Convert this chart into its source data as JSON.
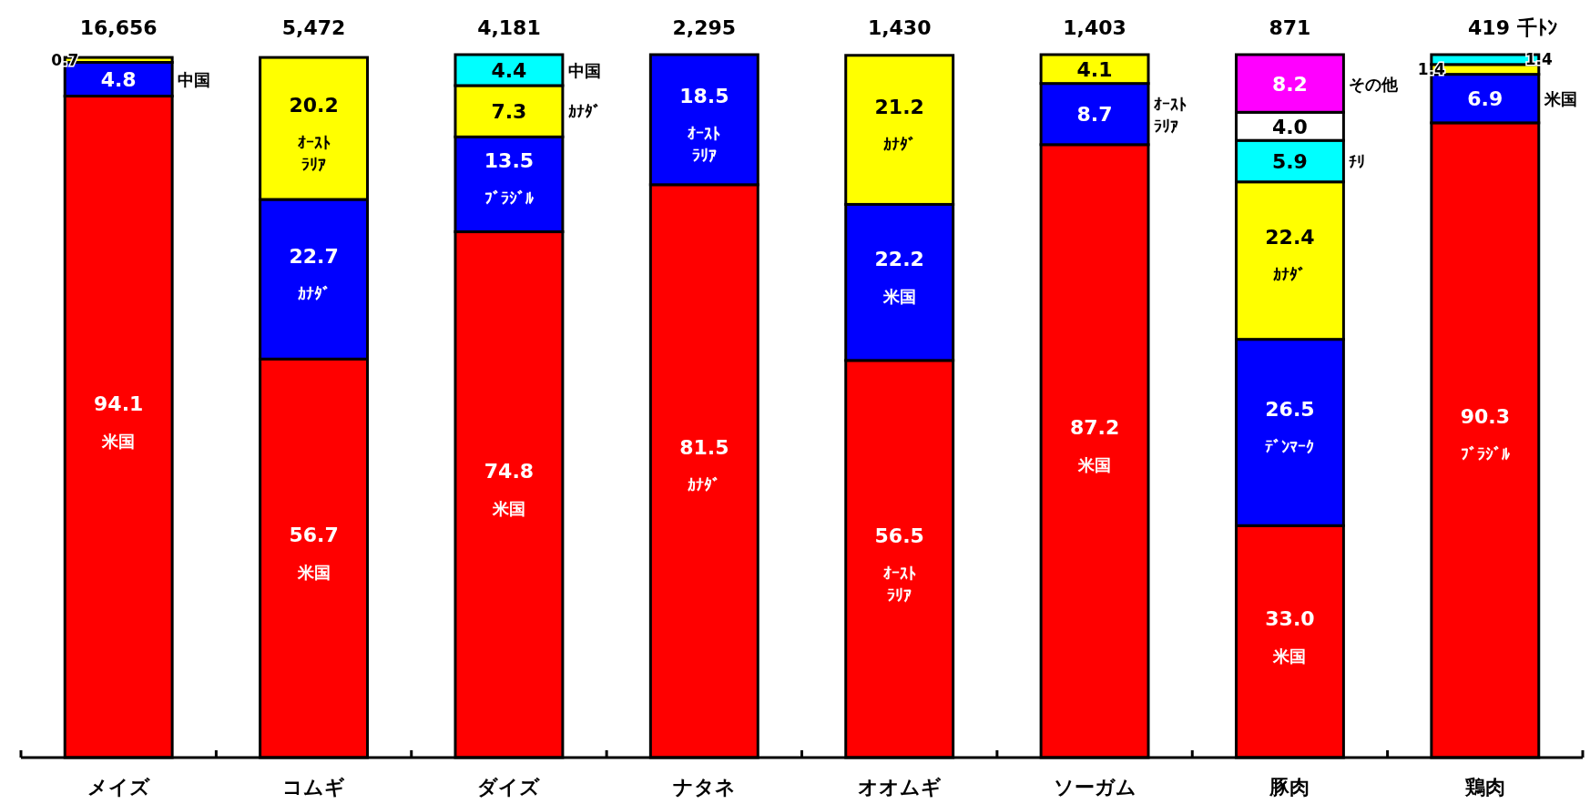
{
  "chart_data": {
    "type": "bar",
    "stacked": true,
    "tick_labels": "x",
    "categories": [
      "メイズ",
      "コムギ",
      "ダイズ",
      "ナタネ",
      "オオムギ",
      "ソーガム",
      "豚肉",
      "鶏肉"
    ],
    "series": [
      {
        "color": "#ff0000",
        "values": [
          94.1,
          56.7,
          74.8,
          81.5,
          56.5,
          87.2,
          33.0,
          90.3
        ],
        "value_labels": [
          "94.1",
          "56.7",
          "74.8",
          "81.5",
          "56.5",
          "87.2",
          "33.0",
          "90.3"
        ]
      },
      {
        "color": "#0000ff",
        "values": [
          4.8,
          22.7,
          13.5,
          18.5,
          22.2,
          8.7,
          26.5,
          6.9
        ],
        "value_labels": [
          "4.8",
          "22.7",
          "13.5",
          "18.5",
          "22.2",
          "8.7",
          "26.5",
          "6.9"
        ]
      },
      {
        "color": "#ffff00",
        "values": [
          0.7,
          20.2,
          7.3,
          null,
          21.2,
          4.1,
          22.4,
          1.4
        ],
        "value_labels": [
          "0.7",
          "20.2",
          "7.3",
          null,
          "21.2",
          "4.1",
          "22.4",
          "1.4"
        ]
      },
      {
        "color": "#00ffff",
        "values": [
          null,
          null,
          4.4,
          null,
          null,
          null,
          5.9,
          1.4
        ],
        "value_labels": [
          null,
          null,
          "4.4",
          null,
          null,
          null,
          "5.9",
          "1.4"
        ]
      },
      {
        "color": "#ffffff",
        "values": [
          null,
          null,
          null,
          null,
          null,
          null,
          4.0,
          null
        ],
        "value_labels": [
          null,
          null,
          null,
          null,
          null,
          null,
          "4.0",
          null
        ]
      },
      {
        "color": "#ff00ff",
        "values": [
          null,
          null,
          null,
          null,
          null,
          null,
          8.2,
          null
        ],
        "value_labels": [
          null,
          null,
          null,
          null,
          null,
          null,
          "8.2",
          null
        ]
      }
    ],
    "annotations": [
      "16,656",
      "5,472",
      "4,181",
      "2,295",
      "1,430",
      "1,403",
      "871",
      "419 千ﾄﾝ",
      "米国",
      "中国",
      "米国",
      "ｶﾅﾀﾞ",
      "ｵｰｽﾄﾗﾘｱ",
      "米国",
      "ﾌﾞﾗｼﾞﾙ",
      "ｶﾅﾀﾞ",
      "中国",
      "ｶﾅﾀﾞ",
      "ｵｰｽﾄﾗﾘｱ",
      "ｵｰｽﾄﾗﾘｱ",
      "米国",
      "ｶﾅﾀﾞ",
      "米国",
      "ｵｰｽﾄﾗﾘｱ",
      "米国",
      "ﾃﾞﾝﾏｰｸ",
      "ｶﾅﾀﾞ",
      "ﾁﾘ",
      "その他",
      "ﾌﾞﾗｼﾞﾙ",
      "米国"
    ]
  }
}
